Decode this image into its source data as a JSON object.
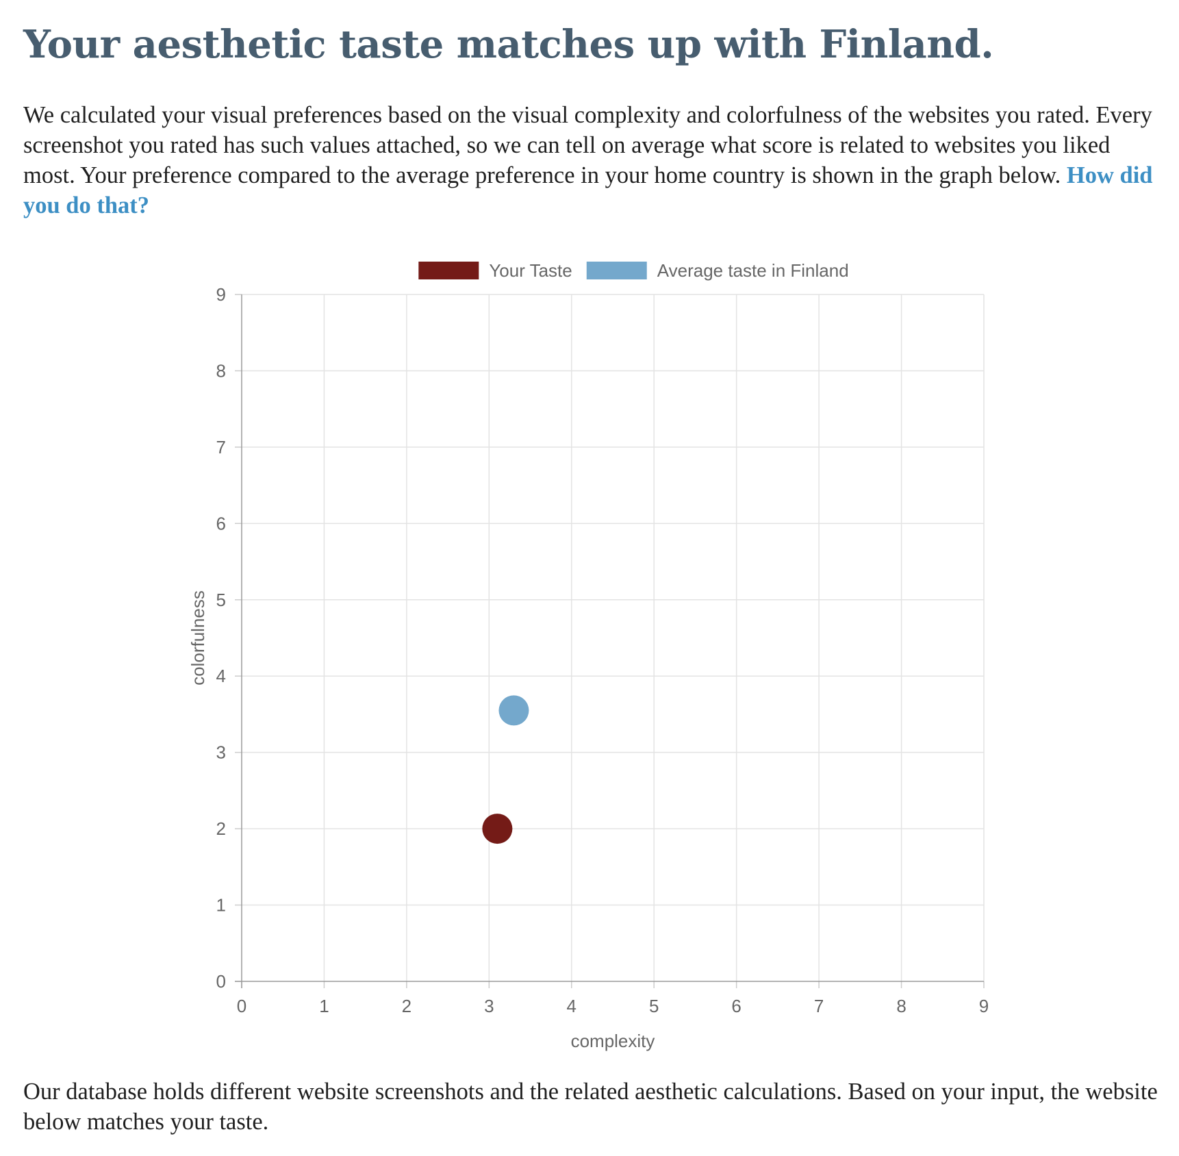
{
  "heading": {
    "title": "Your aesthetic taste matches up with Finland."
  },
  "intro": {
    "text": "We calculated your visual preferences based on the visual complexity and colorfulness of the websites you rated. Every screenshot you rated has such values attached, so we can tell on average what score is related to websites you liked most. Your preference compared to the average preference in your home country is shown in the graph below.",
    "link_label": "How did you do that?"
  },
  "outro": {
    "text": "Our database holds different website screenshots and the related aesthetic calculations. Based on your input, the website below matches your taste."
  },
  "chart_data": {
    "type": "scatter",
    "xlabel": "complexity",
    "ylabel": "colorfulness",
    "xlim": [
      0,
      9
    ],
    "ylim": [
      0,
      9
    ],
    "x_ticks": [
      0,
      1,
      2,
      3,
      4,
      5,
      6,
      7,
      8,
      9
    ],
    "y_ticks": [
      0,
      1,
      2,
      3,
      4,
      5,
      6,
      7,
      8,
      9
    ],
    "grid": true,
    "legend_position": "top",
    "series": [
      {
        "name": "Your Taste",
        "color": "#741b17",
        "points": [
          {
            "x": 3.1,
            "y": 2.0
          }
        ]
      },
      {
        "name": "Average taste in Finland",
        "color": "#74a8cc",
        "points": [
          {
            "x": 3.3,
            "y": 3.55
          }
        ]
      }
    ]
  }
}
